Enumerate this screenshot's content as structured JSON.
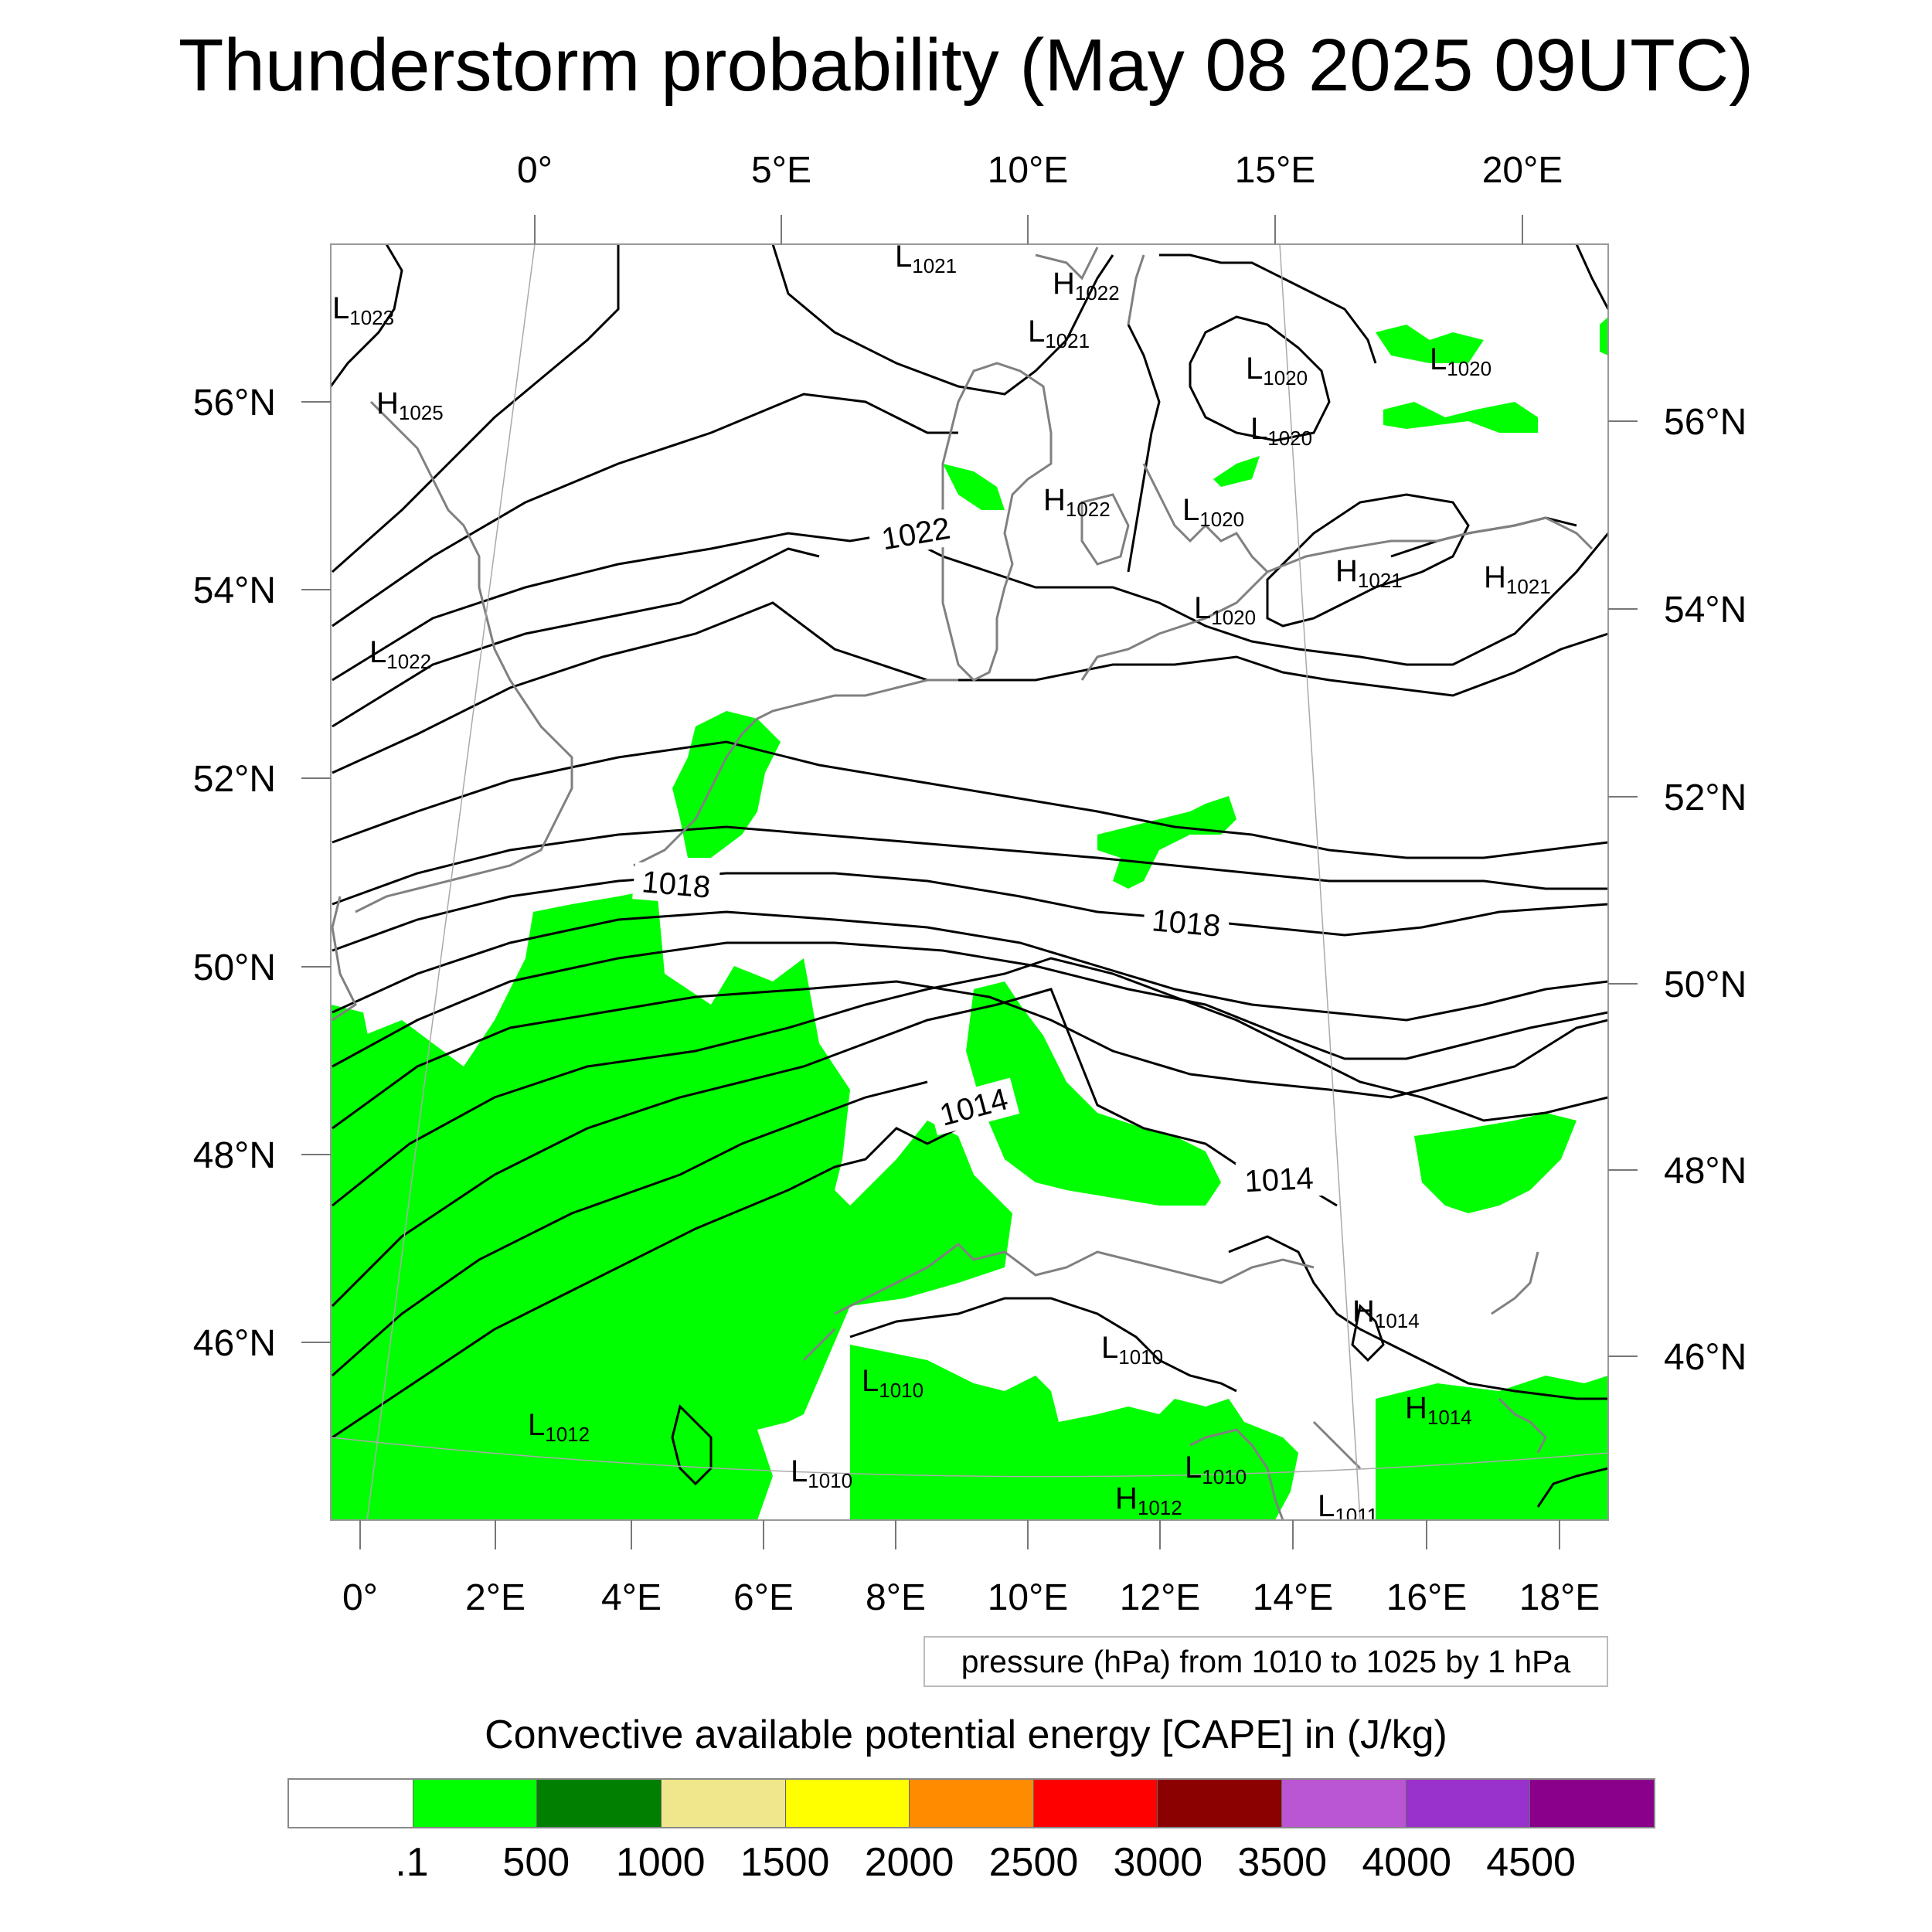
{
  "title": "Thunderstorm probability (May 08 2025 09UTC)",
  "axes": {
    "top_lon_labels": [
      "0°",
      "5°E",
      "10°E",
      "15°E",
      "20°E"
    ],
    "bottom_lon_labels": [
      "0°",
      "2°E",
      "4°E",
      "6°E",
      "8°E",
      "10°E",
      "12°E",
      "14°E",
      "16°E",
      "18°E"
    ],
    "left_lat_labels": [
      "56°N",
      "54°N",
      "52°N",
      "50°N",
      "48°N",
      "46°N"
    ],
    "right_lat_labels": [
      "56°N",
      "54°N",
      "52°N",
      "50°N",
      "48°N",
      "46°N"
    ]
  },
  "isobar_labels": [
    "1022",
    "1018",
    "1018",
    "1014",
    "1014"
  ],
  "pressure_centers": [
    {
      "type": "L",
      "value": "1021"
    },
    {
      "type": "H",
      "value": "1022"
    },
    {
      "type": "L",
      "value": "1023"
    },
    {
      "type": "L",
      "value": "1021"
    },
    {
      "type": "H",
      "value": "1025"
    },
    {
      "type": "L",
      "value": "1020"
    },
    {
      "type": "L",
      "value": "1020"
    },
    {
      "type": "L",
      "value": "1020"
    },
    {
      "type": "H",
      "value": "1022"
    },
    {
      "type": "L",
      "value": "1020"
    },
    {
      "type": "H",
      "value": "1021"
    },
    {
      "type": "H",
      "value": "1021"
    },
    {
      "type": "L",
      "value": "1020"
    },
    {
      "type": "L",
      "value": "1022"
    },
    {
      "type": "H",
      "value": "1014"
    },
    {
      "type": "L",
      "value": "1010"
    },
    {
      "type": "L",
      "value": "1010"
    },
    {
      "type": "H",
      "value": "1014"
    },
    {
      "type": "L",
      "value": "1012"
    },
    {
      "type": "L",
      "value": "1010"
    },
    {
      "type": "L",
      "value": "1010"
    },
    {
      "type": "H",
      "value": "1012"
    },
    {
      "type": "L",
      "value": "1011"
    }
  ],
  "info_box": "pressure (hPa) from 1010 to 1025 by 1 hPa",
  "colorbar": {
    "title": "Convective available potential energy [CAPE] in (J/kg)",
    "colors": [
      "#ffffff",
      "#00ff00",
      "#007f00",
      "#f0e68c",
      "#ffff00",
      "#ff8c00",
      "#ff0000",
      "#8b0000",
      "#ba55d3",
      "#9932cc",
      "#8b008b"
    ],
    "ticks": [
      ".1",
      "500",
      "1000",
      "1500",
      "2000",
      "2500",
      "3000",
      "3500",
      "4000",
      "4500"
    ]
  },
  "colors": {
    "cape_green": "#00ff00",
    "coast": "#808080",
    "isobar": "#000000"
  }
}
